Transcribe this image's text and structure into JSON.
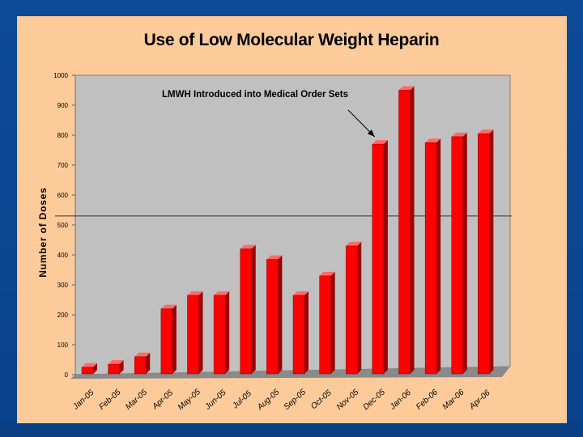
{
  "slide": {
    "background": "#0b4591",
    "panel_color": "#fdcb9a"
  },
  "chart_data": {
    "type": "bar",
    "title": "Use of Low Molecular Weight Heparin",
    "xlabel": "",
    "ylabel": "Number of Doses",
    "ylim": [
      0,
      1000
    ],
    "yticks": [
      0,
      100,
      200,
      300,
      400,
      500,
      600,
      700,
      800,
      900,
      1000
    ],
    "categories": [
      "Jan-05",
      "Feb-05",
      "Mar-05",
      "Apr-05",
      "May-05",
      "Jun-05",
      "Jul-05",
      "Aug-05",
      "Sep-05",
      "Oct-05",
      "Nov-05",
      "Dec-05",
      "Jan-06",
      "Feb-06",
      "Mar-06",
      "Apr-06"
    ],
    "values": [
      25,
      35,
      60,
      220,
      265,
      265,
      420,
      385,
      265,
      330,
      430,
      770,
      950,
      775,
      795,
      805
    ],
    "reference_line": 530,
    "annotation": {
      "text": "LMWH  Introduced into Medical Order Sets",
      "points_to": "Dec-05"
    },
    "colors": {
      "bar_front": "#ff0000",
      "bar_side": "#9c0000",
      "bar_top": "#ff6a6a",
      "plot_background": "#c0c0c0",
      "floor": "#8a8a8a"
    },
    "grid": false
  }
}
